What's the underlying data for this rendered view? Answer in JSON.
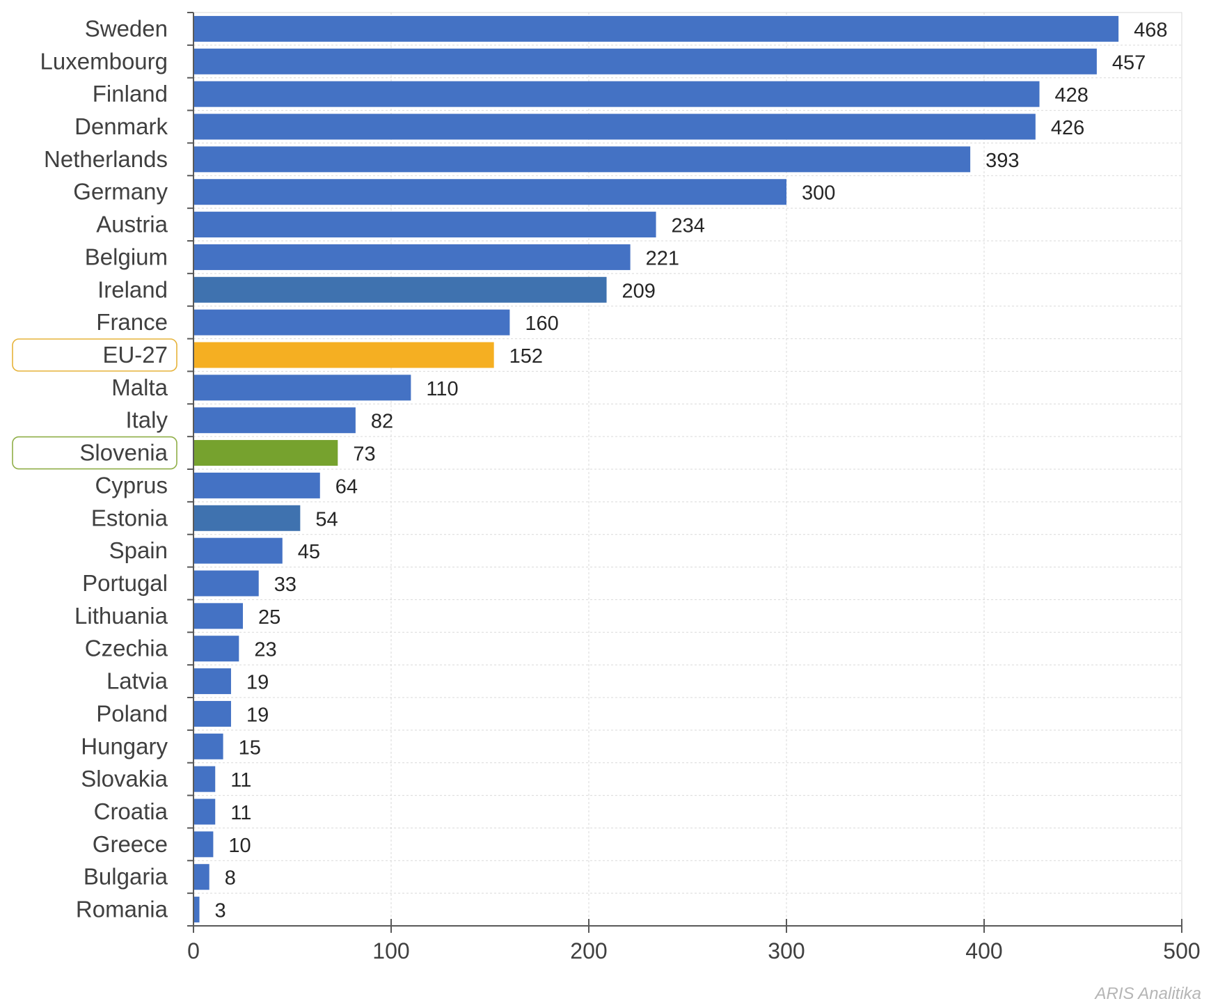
{
  "chart_data": {
    "type": "bar",
    "orientation": "horizontal",
    "categories": [
      "Sweden",
      "Luxembourg",
      "Finland",
      "Denmark",
      "Netherlands",
      "Germany",
      "Austria",
      "Belgium",
      "Ireland",
      "France",
      "EU-27",
      "Malta",
      "Italy",
      "Slovenia",
      "Cyprus",
      "Estonia",
      "Spain",
      "Portugal",
      "Lithuania",
      "Czechia",
      "Latvia",
      "Poland",
      "Hungary",
      "Slovakia",
      "Croatia",
      "Greece",
      "Bulgaria",
      "Romania"
    ],
    "values": [
      468,
      457,
      428,
      426,
      393,
      300,
      234,
      221,
      209,
      160,
      152,
      110,
      82,
      73,
      64,
      54,
      45,
      33,
      25,
      23,
      19,
      19,
      15,
      11,
      11,
      10,
      8,
      3
    ],
    "value_labels": [
      "468",
      "457",
      "428",
      "426",
      "393",
      "300",
      "234",
      "221",
      "209",
      "160",
      "152",
      "110",
      "82",
      "73",
      "64",
      "54",
      "45",
      "33",
      "25",
      "23",
      "19",
      "19",
      "15",
      "11",
      "11",
      "10",
      "8",
      "3"
    ],
    "xlim": [
      0,
      500
    ],
    "xticks": [
      0,
      100,
      200,
      300,
      400,
      500
    ],
    "xtick_labels": [
      "0",
      "100",
      "200",
      "300",
      "400",
      "500"
    ],
    "grid": true,
    "colors": {
      "default": "#4472C4",
      "alt": "#3F72AF",
      "eu": "#F5AF22",
      "slovenia": "#76A22E",
      "eu_outline": "#E6B33A",
      "slovenia_outline": "#8FAE47"
    },
    "bar_colors": [
      "default",
      "default",
      "default",
      "default",
      "default",
      "default",
      "default",
      "default",
      "alt",
      "default",
      "eu",
      "default",
      "default",
      "slovenia",
      "default",
      "alt",
      "default",
      "default",
      "default",
      "default",
      "default",
      "default",
      "default",
      "default",
      "default",
      "default",
      "default",
      "default"
    ],
    "highlighted_labels": [
      "EU-27",
      "Slovenia"
    ]
  },
  "credit": "ARIS Analitika"
}
